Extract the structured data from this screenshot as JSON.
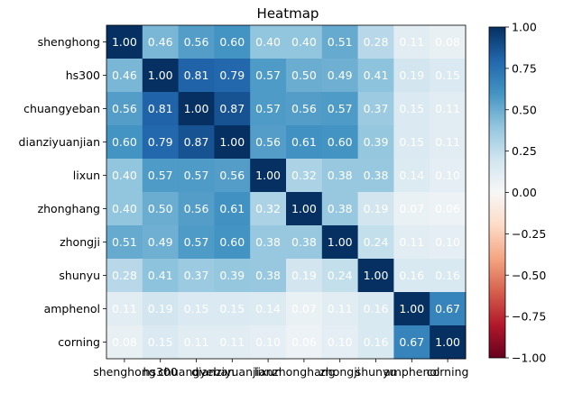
{
  "chart_data": {
    "type": "heatmap",
    "title": "Heatmap",
    "xlabel": "",
    "ylabel": "",
    "categories": [
      "shenghong",
      "hs300",
      "chuangyeban",
      "dianziyuanjian",
      "lixun",
      "zhonghang",
      "zhongji",
      "shunyu",
      "amphenol",
      "corning"
    ],
    "matrix": [
      [
        1.0,
        0.46,
        0.56,
        0.6,
        0.4,
        0.4,
        0.51,
        0.28,
        0.11,
        0.08
      ],
      [
        0.46,
        1.0,
        0.81,
        0.79,
        0.57,
        0.5,
        0.49,
        0.41,
        0.19,
        0.15
      ],
      [
        0.56,
        0.81,
        1.0,
        0.87,
        0.57,
        0.56,
        0.57,
        0.37,
        0.15,
        0.11
      ],
      [
        0.6,
        0.79,
        0.87,
        1.0,
        0.56,
        0.61,
        0.6,
        0.39,
        0.15,
        0.11
      ],
      [
        0.4,
        0.57,
        0.57,
        0.56,
        1.0,
        0.32,
        0.38,
        0.38,
        0.14,
        0.1
      ],
      [
        0.4,
        0.5,
        0.56,
        0.61,
        0.32,
        1.0,
        0.38,
        0.19,
        0.07,
        0.06
      ],
      [
        0.51,
        0.49,
        0.57,
        0.6,
        0.38,
        0.38,
        1.0,
        0.24,
        0.11,
        0.1
      ],
      [
        0.28,
        0.41,
        0.37,
        0.39,
        0.38,
        0.19,
        0.24,
        1.0,
        0.16,
        0.16
      ],
      [
        0.11,
        0.19,
        0.15,
        0.15,
        0.14,
        0.07,
        0.11,
        0.16,
        1.0,
        0.67
      ],
      [
        0.08,
        0.15,
        0.11,
        0.11,
        0.1,
        0.06,
        0.1,
        0.16,
        0.67,
        1.0
      ]
    ],
    "colorbar": {
      "colormap": "RdBu",
      "range": [
        -1.0,
        1.0
      ],
      "ticks": [
        1.0,
        0.75,
        0.5,
        0.25,
        0.0,
        -0.25,
        -0.5,
        -0.75,
        -1.0
      ],
      "tick_labels": [
        "1.00",
        "0.75",
        "0.50",
        "0.25",
        "0.00",
        "−0.25",
        "−0.50",
        "−0.75",
        "−1.00"
      ]
    },
    "grid": false
  }
}
